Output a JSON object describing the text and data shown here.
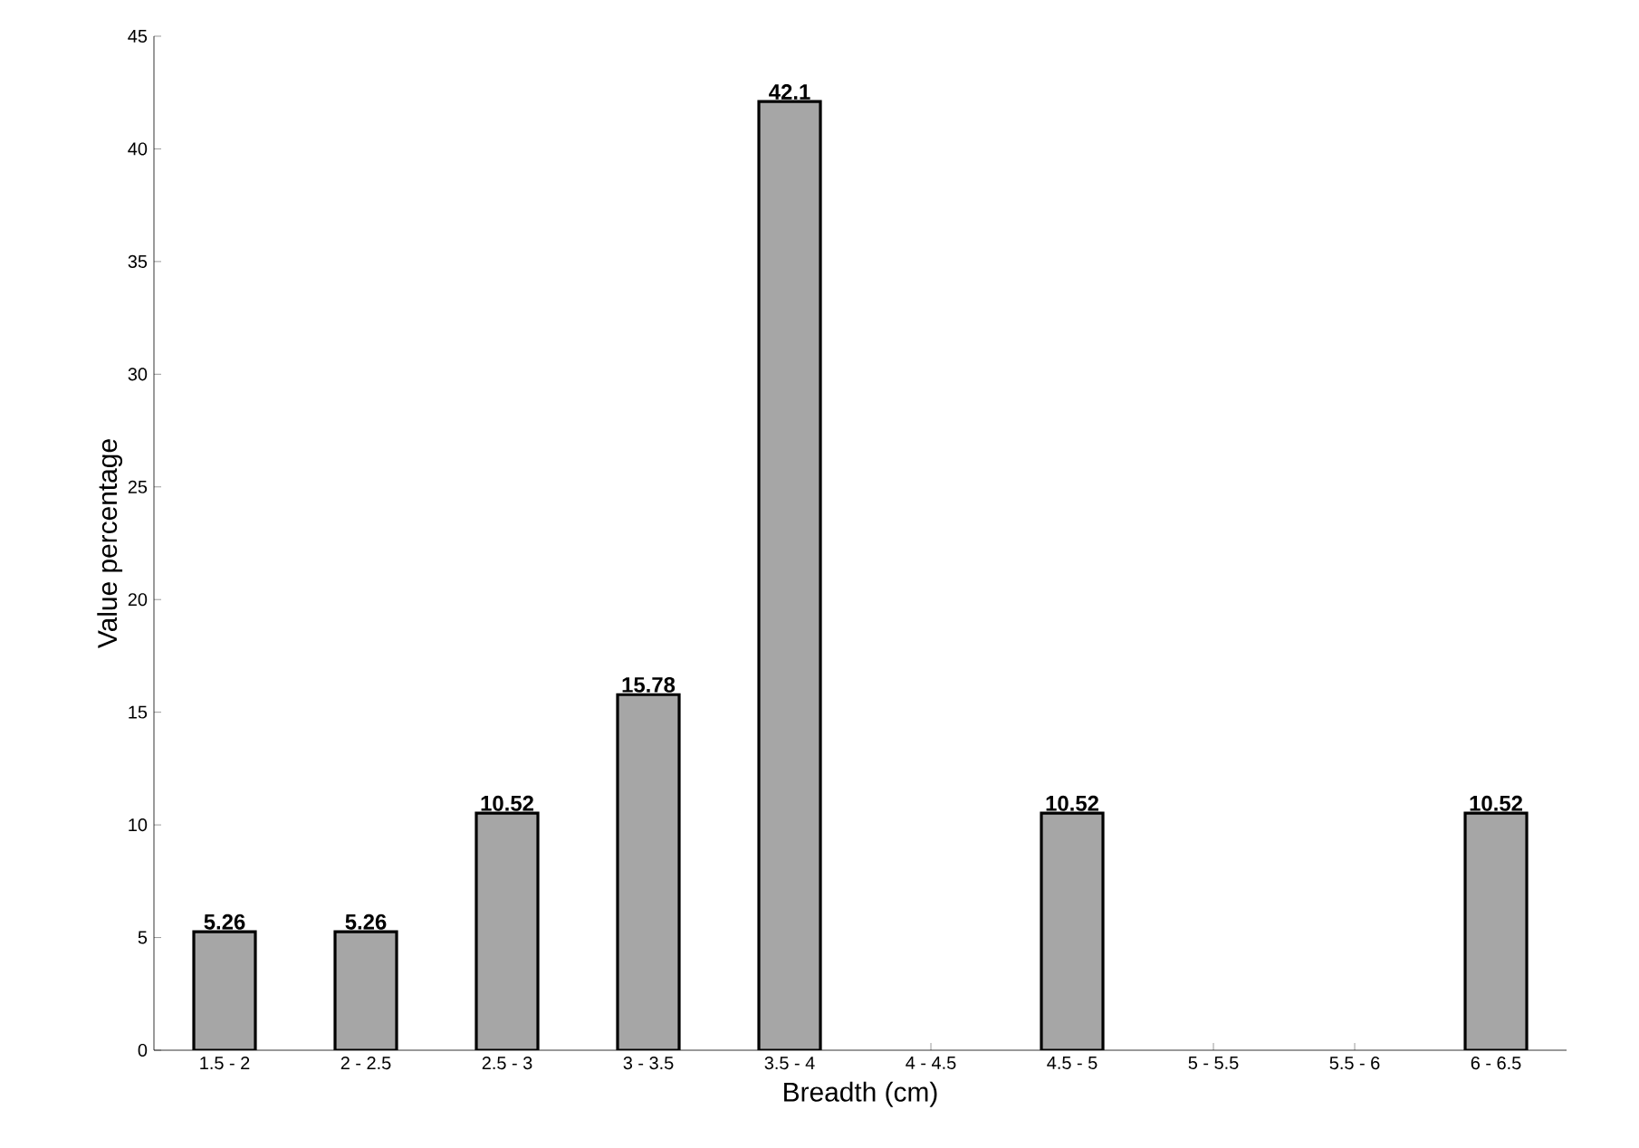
{
  "chart_data": {
    "type": "bar",
    "xlabel": "Breadth (cm)",
    "ylabel": "Value percentage",
    "categories": [
      "1.5 - 2",
      "2 - 2.5",
      "2.5 - 3",
      "3 - 3.5",
      "3.5 - 4",
      "4 - 4.5",
      "4.5 - 5",
      "5 - 5.5",
      "5.5 - 6",
      "6 - 6.5"
    ],
    "values": [
      5.26,
      5.26,
      10.52,
      15.78,
      42.1,
      null,
      10.52,
      null,
      null,
      10.52
    ],
    "value_labels": [
      "5.26",
      "5.26",
      "10.52",
      "15.78",
      "42.1",
      null,
      "10.52",
      null,
      null,
      "10.52"
    ],
    "color": "#a6a6a6",
    "ylim": [
      0,
      45
    ],
    "yticks": [
      0,
      5,
      10,
      15,
      20,
      25,
      30,
      35,
      40,
      45
    ],
    "grid": false
  }
}
